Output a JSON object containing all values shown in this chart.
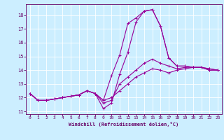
{
  "xlabel": "Windchill (Refroidissement éolien,°C)",
  "background_color": "#cceeff",
  "grid_color": "#ffffff",
  "line_color": "#990099",
  "xlim": [
    -0.5,
    23.5
  ],
  "ylim": [
    10.8,
    18.8
  ],
  "xticks": [
    0,
    1,
    2,
    3,
    4,
    5,
    6,
    7,
    8,
    9,
    10,
    11,
    12,
    13,
    14,
    15,
    16,
    17,
    18,
    19,
    20,
    21,
    22,
    23
  ],
  "yticks": [
    11,
    12,
    13,
    14,
    15,
    16,
    17,
    18
  ],
  "series": [
    [
      12.3,
      11.8,
      11.8,
      11.9,
      12.0,
      12.1,
      12.2,
      12.5,
      12.3,
      11.8,
      13.6,
      15.1,
      17.4,
      17.8,
      18.3,
      18.4,
      17.2,
      14.9,
      14.3,
      14.3,
      14.2,
      14.2,
      14.0,
      14.0
    ],
    [
      12.3,
      11.8,
      11.8,
      11.9,
      12.0,
      12.1,
      12.2,
      12.5,
      12.3,
      11.2,
      11.6,
      13.7,
      15.3,
      17.5,
      18.3,
      18.4,
      17.2,
      14.9,
      14.3,
      14.3,
      14.2,
      14.2,
      14.0,
      14.0
    ],
    [
      12.3,
      11.8,
      11.8,
      11.9,
      12.0,
      12.1,
      12.2,
      12.5,
      12.3,
      11.6,
      11.8,
      13.0,
      13.5,
      14.0,
      14.5,
      14.8,
      14.5,
      14.3,
      14.1,
      14.2,
      14.2,
      14.2,
      14.1,
      14.0
    ],
    [
      12.3,
      11.8,
      11.8,
      11.9,
      12.0,
      12.1,
      12.2,
      12.5,
      12.3,
      11.8,
      12.0,
      12.5,
      13.0,
      13.5,
      13.8,
      14.1,
      14.0,
      13.8,
      14.0,
      14.1,
      14.2,
      14.2,
      14.1,
      14.0
    ]
  ]
}
